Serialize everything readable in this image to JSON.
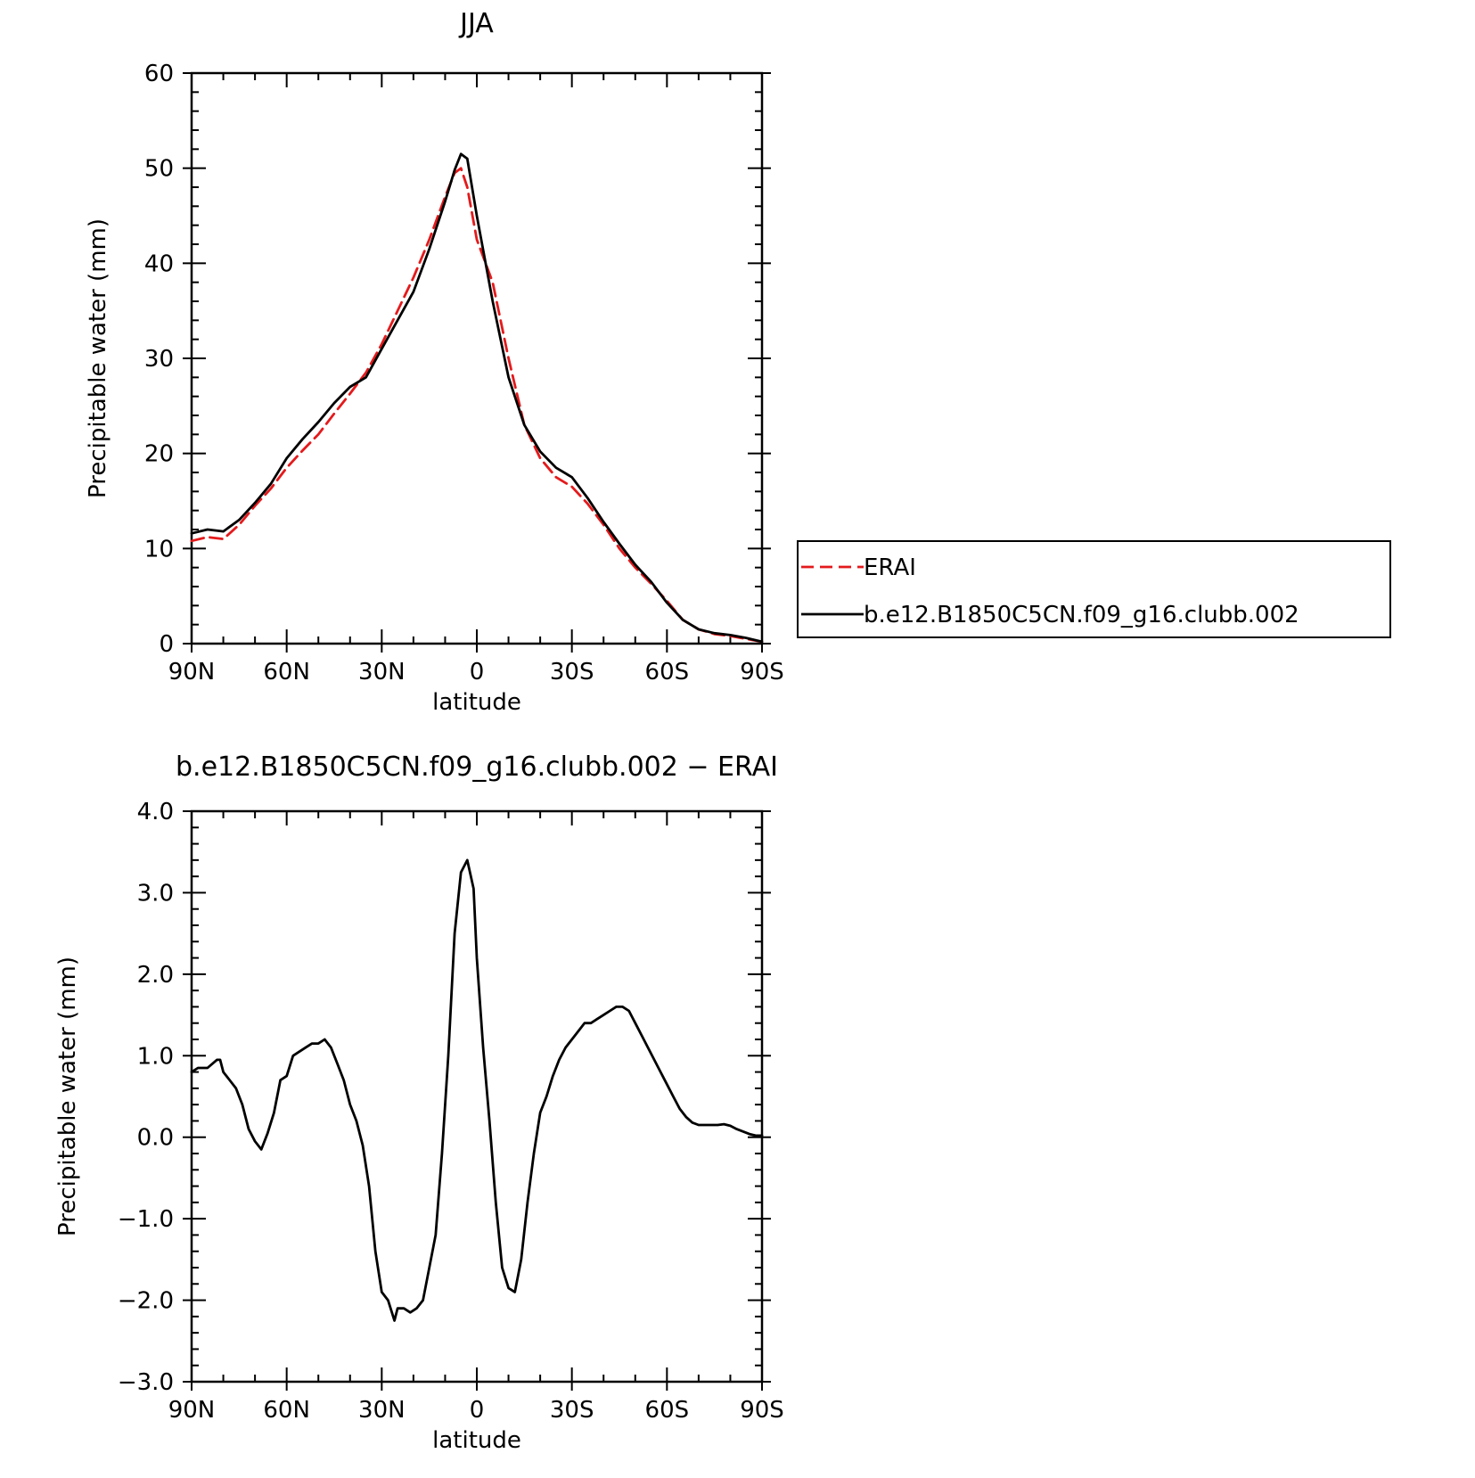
{
  "chart_data": [
    {
      "type": "line",
      "title": "JJA",
      "xlabel": "latitude",
      "ylabel": "Precipitable water (mm)",
      "xlim": [
        90,
        -90
      ],
      "ylim": [
        0,
        60
      ],
      "xticks": [
        90,
        60,
        30,
        0,
        -30,
        -60,
        -90
      ],
      "xtick_labels": [
        "90N",
        "60N",
        "30N",
        "0",
        "30S",
        "60S",
        "90S"
      ],
      "yticks": [
        0,
        10,
        20,
        30,
        40,
        50,
        60
      ],
      "ytick_labels": [
        "0",
        "10",
        "20",
        "30",
        "40",
        "50",
        "60"
      ],
      "grid": false,
      "legend": "right",
      "series": [
        {
          "name": "ERAI",
          "color": "#e41a1c",
          "dash": "dashed",
          "x": [
            90,
            85,
            80,
            75,
            70,
            65,
            60,
            55,
            50,
            45,
            40,
            35,
            30,
            25,
            20,
            15,
            10,
            7,
            5,
            3,
            0,
            -5,
            -10,
            -15,
            -20,
            -25,
            -30,
            -35,
            -40,
            -45,
            -50,
            -55,
            -60,
            -65,
            -70,
            -75,
            -80,
            -85,
            -90
          ],
          "values": [
            10.8,
            11.2,
            11.0,
            12.5,
            14.5,
            16.3,
            18.5,
            20.3,
            22.0,
            24.2,
            26.3,
            28.5,
            31.5,
            35.0,
            38.5,
            42.5,
            47.0,
            49.5,
            50.0,
            48.0,
            42.5,
            38.0,
            30.0,
            23.0,
            19.5,
            17.5,
            16.5,
            14.7,
            12.5,
            10.0,
            8.0,
            6.3,
            4.5,
            2.5,
            1.5,
            1.0,
            0.8,
            0.5,
            0.2
          ]
        },
        {
          "name": "b.e12.B1850C5CN.f09_g16.clubb.002",
          "color": "#000000",
          "dash": "solid",
          "x": [
            90,
            85,
            80,
            75,
            70,
            65,
            60,
            55,
            50,
            45,
            40,
            35,
            30,
            25,
            20,
            15,
            10,
            7,
            5,
            3,
            0,
            -5,
            -10,
            -15,
            -20,
            -25,
            -30,
            -35,
            -40,
            -45,
            -50,
            -55,
            -60,
            -65,
            -70,
            -75,
            -80,
            -85,
            -90
          ],
          "values": [
            11.6,
            12.0,
            11.8,
            13.0,
            14.8,
            16.8,
            19.5,
            21.5,
            23.3,
            25.3,
            27.0,
            28.0,
            31.0,
            34.0,
            37.0,
            41.5,
            46.5,
            49.8,
            51.5,
            51.0,
            45.0,
            36.0,
            28.0,
            23.0,
            20.2,
            18.5,
            17.5,
            15.3,
            12.8,
            10.5,
            8.3,
            6.5,
            4.3,
            2.5,
            1.5,
            1.1,
            0.9,
            0.6,
            0.2
          ]
        }
      ]
    },
    {
      "type": "line",
      "title": "b.e12.B1850C5CN.f09_g16.clubb.002 − ERAI",
      "xlabel": "latitude",
      "ylabel": "Precipitable water (mm)",
      "xlim": [
        90,
        -90
      ],
      "ylim": [
        -3.0,
        4.0
      ],
      "xticks": [
        90,
        60,
        30,
        0,
        -30,
        -60,
        -90
      ],
      "xtick_labels": [
        "90N",
        "60N",
        "30N",
        "0",
        "30S",
        "60S",
        "90S"
      ],
      "yticks": [
        -3,
        -2,
        -1,
        0,
        1,
        2,
        3,
        4
      ],
      "ytick_labels": [
        "−3.0",
        "−2.0",
        "−1.0",
        "0.0",
        "1.0",
        "2.0",
        "3.0",
        "4.0"
      ],
      "grid": false,
      "series": [
        {
          "name": "",
          "color": "#000000",
          "dash": "solid",
          "x": [
            90,
            88,
            85,
            82,
            81,
            80,
            78,
            76,
            74,
            72,
            70,
            68,
            66,
            64,
            62,
            60,
            58,
            56,
            54,
            52,
            50,
            48,
            46,
            45,
            44,
            42,
            40,
            38,
            36,
            34,
            32,
            30,
            28,
            26,
            25,
            23,
            21,
            19,
            17,
            15,
            13,
            11,
            9,
            7,
            5,
            3,
            1,
            0,
            -2,
            -4,
            -6,
            -8,
            -10,
            -12,
            -14,
            -16,
            -18,
            -20,
            -22,
            -24,
            -26,
            -28,
            -30,
            -32,
            -34,
            -36,
            -38,
            -40,
            -42,
            -44,
            -46,
            -48,
            -50,
            -52,
            -54,
            -56,
            -58,
            -60,
            -62,
            -64,
            -66,
            -68,
            -70,
            -72,
            -74,
            -76,
            -78,
            -80,
            -82,
            -84,
            -86,
            -88,
            -90
          ],
          "values": [
            0.8,
            0.85,
            0.85,
            0.95,
            0.95,
            0.8,
            0.7,
            0.6,
            0.4,
            0.1,
            -0.05,
            -0.15,
            0.05,
            0.3,
            0.7,
            0.75,
            1.0,
            1.05,
            1.1,
            1.15,
            1.15,
            1.2,
            1.1,
            1.0,
            0.9,
            0.7,
            0.4,
            0.2,
            -0.1,
            -0.6,
            -1.4,
            -1.9,
            -2.0,
            -2.25,
            -2.1,
            -2.1,
            -2.15,
            -2.1,
            -2.0,
            -1.6,
            -1.2,
            -0.2,
            1.0,
            2.5,
            3.25,
            3.4,
            3.05,
            2.2,
            1.1,
            0.2,
            -0.8,
            -1.6,
            -1.85,
            -1.9,
            -1.5,
            -0.8,
            -0.2,
            0.3,
            0.5,
            0.75,
            0.95,
            1.1,
            1.2,
            1.3,
            1.4,
            1.4,
            1.45,
            1.5,
            1.55,
            1.6,
            1.6,
            1.55,
            1.4,
            1.25,
            1.1,
            0.95,
            0.8,
            0.65,
            0.5,
            0.35,
            0.25,
            0.18,
            0.15,
            0.15,
            0.15,
            0.15,
            0.16,
            0.14,
            0.1,
            0.07,
            0.04,
            0.02,
            0.02
          ]
        }
      ]
    }
  ]
}
